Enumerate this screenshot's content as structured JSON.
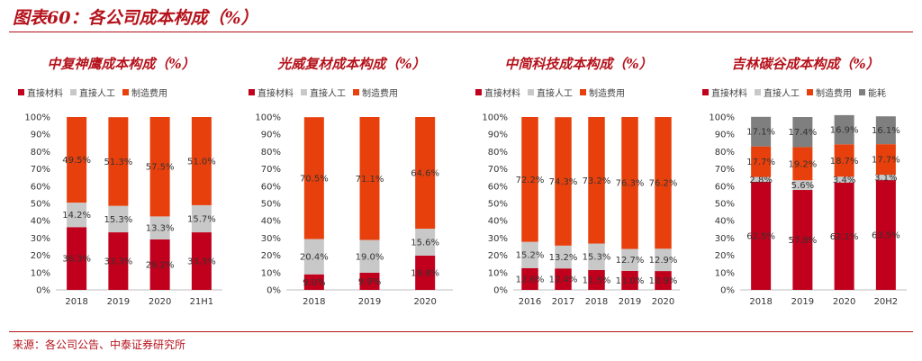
{
  "page": {
    "title": "图表60：各公司成本构成（%）",
    "source": "来源：各公司公告、中泰证券研究所"
  },
  "colors": {
    "series": [
      "#c0001c",
      "#c8c8c8",
      "#e8400c",
      "#7f7f7f"
    ],
    "title": "#b5121b"
  },
  "chart_data": [
    {
      "type": "bar",
      "stacked": true,
      "title": "中复神鹰成本构成（%）",
      "categories": [
        "2018",
        "2019",
        "2020",
        "21H1"
      ],
      "series": [
        {
          "name": "直接材料",
          "values": [
            36.3,
            33.3,
            29.2,
            33.3
          ],
          "labels": [
            "36.3%",
            "33.3%",
            "29.2%",
            "33.3%"
          ]
        },
        {
          "name": "直接人工",
          "values": [
            14.2,
            15.3,
            13.3,
            15.7
          ],
          "labels": [
            "14.2%",
            "15.3%",
            "13.3%",
            "15.7%"
          ]
        },
        {
          "name": "制造费用",
          "values": [
            49.5,
            51.3,
            57.5,
            51.0
          ],
          "labels": [
            "49.5%",
            "51.3%",
            "57.5%",
            "51.0%"
          ]
        }
      ],
      "yticks": [
        "0%",
        "10%",
        "20%",
        "30%",
        "40%",
        "50%",
        "60%",
        "70%",
        "80%",
        "90%",
        "100%"
      ],
      "ylim": [
        0,
        100
      ]
    },
    {
      "type": "bar",
      "stacked": true,
      "title": "光威复材成本构成（%）",
      "categories": [
        "2018",
        "2019",
        "2020"
      ],
      "series": [
        {
          "name": "直接材料",
          "values": [
            9.0,
            9.9,
            19.8
          ],
          "labels": [
            "9.0%",
            "9.9%",
            "19.8%"
          ]
        },
        {
          "name": "直接人工",
          "values": [
            20.4,
            19.0,
            15.6
          ],
          "labels": [
            "20.4%",
            "19.0%",
            "15.6%"
          ]
        },
        {
          "name": "制造费用",
          "values": [
            70.5,
            71.1,
            64.6
          ],
          "labels": [
            "70.5%",
            "71.1%",
            "64.6%"
          ]
        }
      ],
      "yticks": [
        "0%",
        "10%",
        "20%",
        "30%",
        "40%",
        "50%",
        "60%",
        "70%",
        "80%",
        "90%",
        "100%"
      ],
      "ylim": [
        0,
        100
      ]
    },
    {
      "type": "bar",
      "stacked": true,
      "title": "中简科技成本构成（%）",
      "categories": [
        "2016",
        "2017",
        "2018",
        "2019",
        "2020"
      ],
      "series": [
        {
          "name": "直接材料",
          "values": [
            12.6,
            12.4,
            11.5,
            11.0,
            10.9
          ],
          "labels": [
            "12.6%",
            "12.4%",
            "11.5%",
            "11.0%",
            "10.9%"
          ]
        },
        {
          "name": "直接人工",
          "values": [
            15.2,
            13.2,
            15.3,
            12.7,
            12.9
          ],
          "labels": [
            "15.2%",
            "13.2%",
            "15.3%",
            "12.7%",
            "12.9%"
          ]
        },
        {
          "name": "制造费用",
          "values": [
            72.2,
            74.3,
            73.2,
            76.3,
            76.2
          ],
          "labels": [
            "72.2%",
            "74.3%",
            "73.2%",
            "76.3%",
            "76.2%"
          ]
        }
      ],
      "yticks": [
        "0%",
        "10%",
        "20%",
        "30%",
        "40%",
        "50%",
        "60%",
        "70%",
        "80%",
        "90%",
        "100%"
      ],
      "ylim": [
        0,
        100
      ]
    },
    {
      "type": "bar",
      "stacked": true,
      "title": "吉林碳谷成本构成（%）",
      "categories": [
        "2018",
        "2019",
        "2020",
        "20H2"
      ],
      "series": [
        {
          "name": "直接材料",
          "values": [
            62.5,
            57.8,
            62.1,
            63.5
          ],
          "labels": [
            "62.5%",
            "57.8%",
            "62.1%",
            "63.5%"
          ]
        },
        {
          "name": "直接人工",
          "values": [
            2.8,
            5.6,
            3.4,
            3.1
          ],
          "labels": [
            "2.8%",
            "5.6%",
            "3.4%",
            "3.1%"
          ]
        },
        {
          "name": "制造费用",
          "values": [
            17.7,
            19.2,
            18.7,
            17.7
          ],
          "labels": [
            "17.7%",
            "19.2%",
            "18.7%",
            "17.7%"
          ]
        },
        {
          "name": "能耗",
          "values": [
            17.1,
            17.4,
            16.9,
            16.1
          ],
          "labels": [
            "17.1%",
            "17.4%",
            "16.9%",
            "16.1%"
          ]
        }
      ],
      "yticks": [
        "0%",
        "10%",
        "20%",
        "30%",
        "40%",
        "50%",
        "60%",
        "70%",
        "80%",
        "90%",
        "100%"
      ],
      "ylim": [
        0,
        100
      ]
    }
  ]
}
